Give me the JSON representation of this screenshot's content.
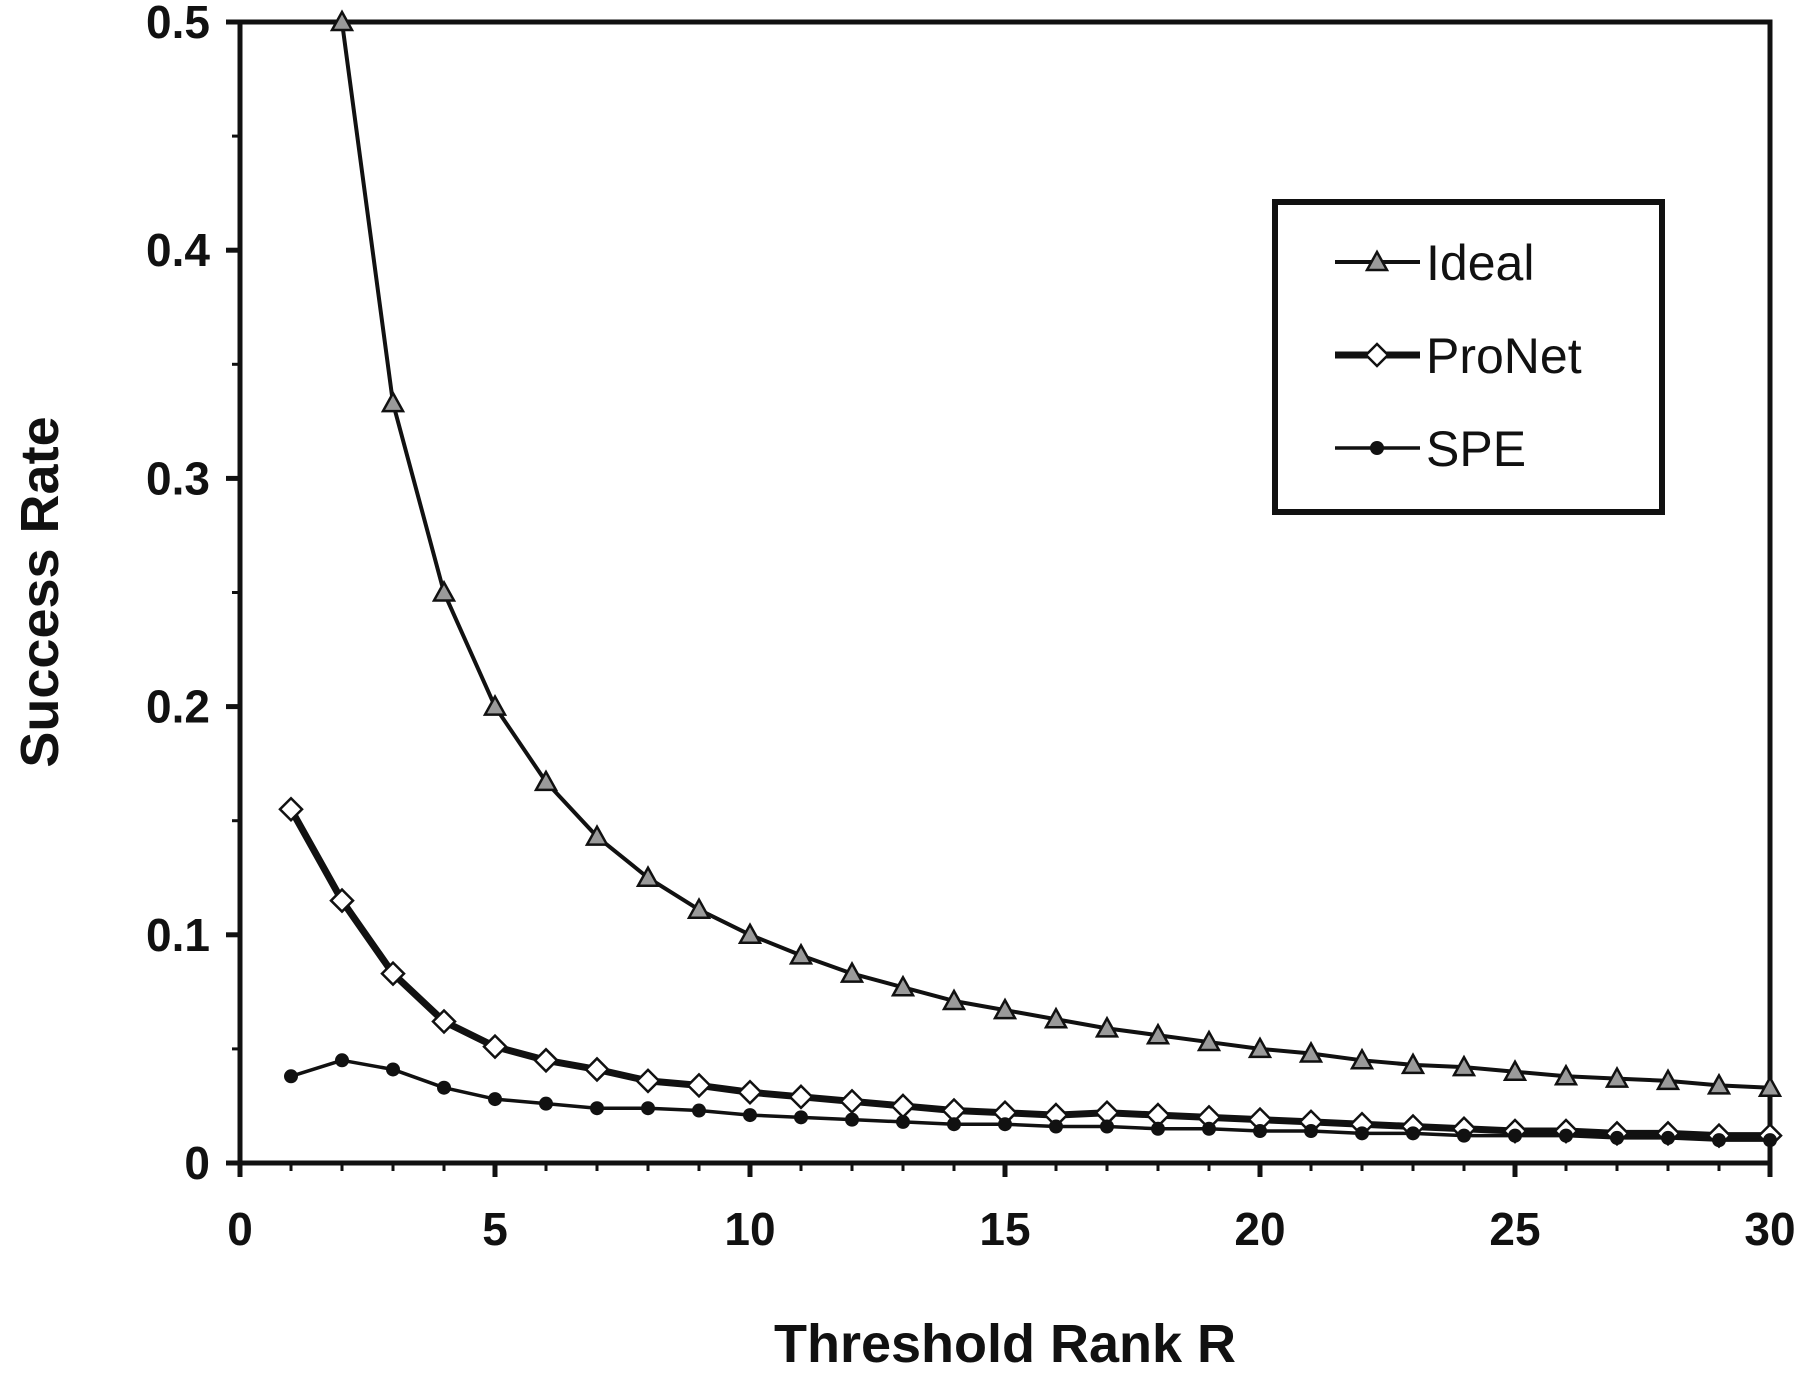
{
  "chart_data": {
    "type": "line",
    "title": "",
    "xlabel": "Threshold Rank R",
    "ylabel": "Success Rate",
    "xlim": [
      0,
      30
    ],
    "ylim": [
      0,
      0.5
    ],
    "x_ticks": [
      "0",
      "5",
      "10",
      "15",
      "20",
      "25",
      "30"
    ],
    "y_ticks": [
      "0",
      "0.1",
      "0.2",
      "0.3",
      "0.4",
      "0.5"
    ],
    "grid": false,
    "legend_position": "top-right",
    "series": [
      {
        "name": "Ideal",
        "marker": "triangle",
        "x": [
          2,
          3,
          4,
          5,
          6,
          7,
          8,
          9,
          10,
          11,
          12,
          13,
          14,
          15,
          16,
          17,
          18,
          19,
          20,
          21,
          22,
          23,
          24,
          25,
          26,
          27,
          28,
          29,
          30
        ],
        "values": [
          0.5,
          0.333,
          0.25,
          0.2,
          0.167,
          0.143,
          0.125,
          0.111,
          0.1,
          0.091,
          0.083,
          0.077,
          0.071,
          0.067,
          0.063,
          0.059,
          0.056,
          0.053,
          0.05,
          0.048,
          0.045,
          0.043,
          0.042,
          0.04,
          0.038,
          0.037,
          0.036,
          0.034,
          0.033
        ]
      },
      {
        "name": "ProNet",
        "marker": "diamond",
        "x": [
          1,
          2,
          3,
          4,
          5,
          6,
          7,
          8,
          9,
          10,
          11,
          12,
          13,
          14,
          15,
          16,
          17,
          18,
          19,
          20,
          21,
          22,
          23,
          24,
          25,
          26,
          27,
          28,
          29,
          30
        ],
        "values": [
          0.155,
          0.115,
          0.083,
          0.062,
          0.051,
          0.045,
          0.041,
          0.036,
          0.034,
          0.031,
          0.029,
          0.027,
          0.025,
          0.023,
          0.022,
          0.021,
          0.022,
          0.021,
          0.02,
          0.019,
          0.018,
          0.017,
          0.016,
          0.015,
          0.014,
          0.014,
          0.013,
          0.013,
          0.012,
          0.012
        ]
      },
      {
        "name": "SPE",
        "marker": "circle",
        "x": [
          1,
          2,
          3,
          4,
          5,
          6,
          7,
          8,
          9,
          10,
          11,
          12,
          13,
          14,
          15,
          16,
          17,
          18,
          19,
          20,
          21,
          22,
          23,
          24,
          25,
          26,
          27,
          28,
          29,
          30
        ],
        "values": [
          0.038,
          0.045,
          0.041,
          0.033,
          0.028,
          0.026,
          0.024,
          0.024,
          0.023,
          0.021,
          0.02,
          0.019,
          0.018,
          0.017,
          0.017,
          0.016,
          0.016,
          0.015,
          0.015,
          0.014,
          0.014,
          0.013,
          0.013,
          0.012,
          0.012,
          0.012,
          0.011,
          0.011,
          0.01,
          0.01
        ]
      }
    ]
  }
}
